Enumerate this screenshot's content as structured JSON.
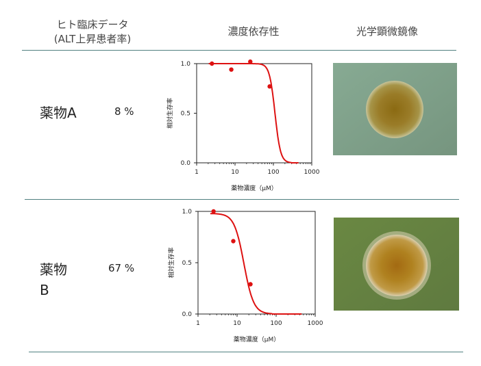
{
  "header": {
    "clinical_line1": "ヒト臨床データ",
    "clinical_line2": "(ALT上昇患者率)",
    "dose": "濃度依存性",
    "microscope": "光学顕微鏡像"
  },
  "rows": [
    {
      "drug": "薬物A",
      "rate": "8 %"
    },
    {
      "drug_line1": "薬物",
      "drug_line2": "B",
      "rate": "67 %"
    }
  ],
  "colors": {
    "curve": "#dd1111",
    "rule": "#4f7f7f",
    "agar_a": "#7fa08a",
    "agar_b": "#6f8a48"
  },
  "chart_data": [
    {
      "type": "scatter",
      "xlabel": "薬物濃度（μM）",
      "ylabel": "相対生存率",
      "xscale": "log",
      "xlim": [
        1,
        1000
      ],
      "ylim": [
        0,
        1.0
      ],
      "xticks": [
        "1",
        "10",
        "100",
        "1000"
      ],
      "yticks": [
        "0.0",
        "0.5",
        "1.0"
      ],
      "points": [
        {
          "x": 2.5,
          "y": 1.0
        },
        {
          "x": 8,
          "y": 0.94
        },
        {
          "x": 25,
          "y": 1.02
        },
        {
          "x": 80,
          "y": 0.77
        }
      ],
      "curve": {
        "top": 1.0,
        "ic50": 110,
        "hill": 6
      }
    },
    {
      "type": "scatter",
      "xlabel": "薬物濃度（μM）",
      "ylabel": "相対生存率",
      "xscale": "log",
      "xlim": [
        1,
        1000
      ],
      "ylim": [
        0,
        1.0
      ],
      "xticks": [
        "1",
        "10",
        "100",
        "1000"
      ],
      "yticks": [
        "0.0",
        "0.5",
        "1.0"
      ],
      "points": [
        {
          "x": 2.5,
          "y": 1.0
        },
        {
          "x": 8,
          "y": 0.71
        },
        {
          "x": 22,
          "y": 0.29
        }
      ],
      "curve": {
        "top": 0.98,
        "ic50": 15,
        "hill": 3.5
      }
    }
  ]
}
